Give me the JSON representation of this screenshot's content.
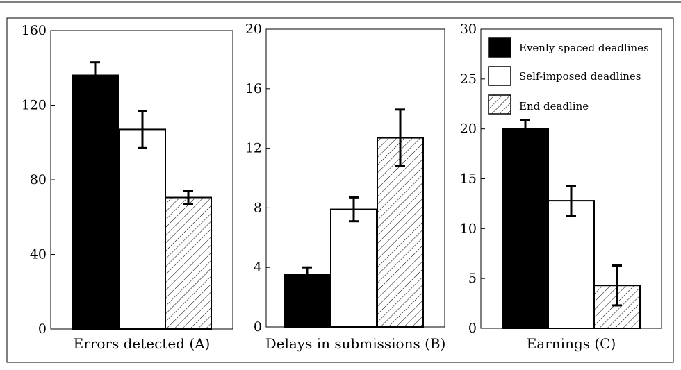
{
  "chart_data": [
    {
      "type": "bar",
      "xlabel": "Errors detected (A)",
      "categories": [
        "Evenly spaced deadlines",
        "Self-imposed deadlines",
        "End deadline"
      ],
      "values": [
        136,
        107,
        70.5
      ],
      "errors": [
        7,
        10,
        3.5
      ],
      "ylim": [
        0,
        160
      ],
      "yticks": [
        "0",
        "40",
        "80",
        "120",
        "160"
      ],
      "ytick_values": [
        0,
        40,
        80,
        120,
        160
      ]
    },
    {
      "type": "bar",
      "xlabel": "Delays in submissions (B)",
      "categories": [
        "Evenly spaced deadlines",
        "Self-imposed deadlines",
        "End deadline"
      ],
      "values": [
        3.5,
        7.9,
        12.7
      ],
      "errors": [
        0.5,
        0.8,
        1.9
      ],
      "ylim": [
        0,
        20
      ],
      "yticks": [
        "0",
        "4",
        "8",
        "12",
        "16",
        "20"
      ],
      "ytick_values": [
        0,
        4,
        8,
        12,
        16,
        20
      ]
    },
    {
      "type": "bar",
      "xlabel": "Earnings (C)",
      "categories": [
        "Evenly spaced deadlines",
        "Self-imposed deadlines",
        "End deadline"
      ],
      "values": [
        20.0,
        12.8,
        4.3
      ],
      "errors": [
        0.9,
        1.5,
        2.0
      ],
      "ylim": [
        0,
        30
      ],
      "yticks": [
        "0",
        "5",
        "10",
        "15",
        "20",
        "25",
        "30"
      ],
      "ytick_values": [
        0,
        5,
        10,
        15,
        20,
        25,
        30
      ]
    }
  ],
  "legend": {
    "position": "top-right",
    "items": [
      {
        "label": "Evenly spaced deadlines",
        "style": "solid-black"
      },
      {
        "label": "Self-imposed deadlines",
        "style": "white"
      },
      {
        "label": "End deadline",
        "style": "hatched"
      }
    ]
  },
  "colors": {
    "evenly": "#000000",
    "self_imposed": "#ffffff",
    "end": "hatched"
  }
}
